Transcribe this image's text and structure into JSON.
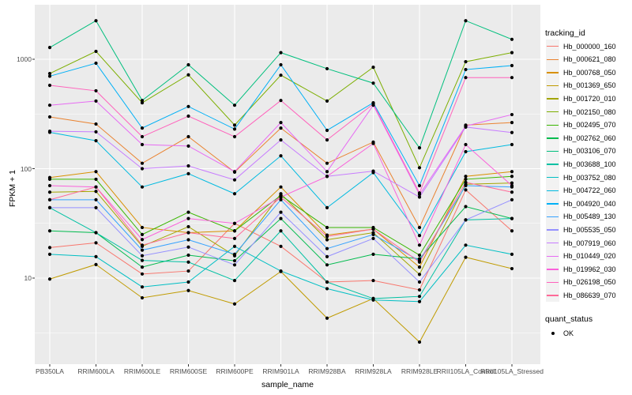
{
  "figure": {
    "y_axis": {
      "title": "FPKM + 1",
      "tick_labels": [
        "10",
        "100",
        "1000"
      ],
      "tick_values": [
        10,
        100,
        1000
      ],
      "minor_tick_values": [
        3.162,
        31.62,
        316.2
      ]
    },
    "x_axis": {
      "title": "sample_name"
    },
    "legend": {
      "title": "tracking_id",
      "quant_title": "quant_status",
      "quant_items": [
        "OK"
      ]
    },
    "colors": {
      "panel_bg": "#EBEBEB",
      "grid": "#FFFFFF",
      "axis_text": "#4D4D4D",
      "key_bg": "#F2F2F2",
      "point": "#000000"
    }
  },
  "chart_data": {
    "type": "line",
    "title": "",
    "xlabel": "sample_name",
    "ylabel": "FPKM + 1",
    "y_scale": "log10",
    "ylim": [
      1.6,
      3100
    ],
    "y_ticks": [
      10,
      100,
      1000
    ],
    "grid": true,
    "legend_position": "right",
    "x_categories": [
      "PB350LA",
      "RRIM600LA",
      "RRIM600LE",
      "RRIM600SE",
      "RRIM600PE",
      "RRIM901LA",
      "RRIM928BA",
      "RRIM928LA",
      "RRIM928LE",
      "RRII105LA_Control",
      "RRII105LA_Stressed"
    ],
    "series": [
      {
        "name": "Hb_000000_160",
        "color": "#F8766D",
        "values": [
          19,
          21,
          10.9,
          11.6,
          31.6,
          19.5,
          9.2,
          9.5,
          7.8,
          64,
          27
        ]
      },
      {
        "name": "Hb_000621_080",
        "color": "#EA8331",
        "values": [
          297,
          256,
          112,
          196,
          93,
          235,
          112,
          175,
          29,
          250,
          264
        ]
      },
      {
        "name": "Hb_000768_050",
        "color": "#D89000",
        "values": [
          83,
          94,
          29,
          26,
          27,
          68,
          24.7,
          28,
          12.6,
          85,
          94
        ]
      },
      {
        "name": "Hb_001369_650",
        "color": "#C09B00",
        "values": [
          9.8,
          13.3,
          6.6,
          7.7,
          5.8,
          11.5,
          4.3,
          6.5,
          2.6,
          15.5,
          12.2
        ]
      },
      {
        "name": "Hb_001720_010",
        "color": "#A3A500",
        "values": [
          61,
          62,
          19.5,
          29.5,
          16,
          59,
          22.4,
          26,
          10.8,
          72,
          74
        ]
      },
      {
        "name": "Hb_002150_080",
        "color": "#7CAE00",
        "values": [
          740,
          1180,
          400,
          720,
          250,
          715,
          415,
          845,
          102,
          950,
          1150
        ]
      },
      {
        "name": "Hb_002495_070",
        "color": "#39B600",
        "values": [
          80,
          80,
          25,
          40,
          27,
          57,
          29,
          29,
          16.2,
          80,
          85
        ]
      },
      {
        "name": "Hb_002762_060",
        "color": "#00BB4E",
        "values": [
          27,
          26,
          12.6,
          16.2,
          14.4,
          35,
          13.2,
          16.5,
          15,
          45,
          35
        ]
      },
      {
        "name": "Hb_003106_070",
        "color": "#00BF7D",
        "values": [
          1280,
          2250,
          420,
          890,
          380,
          1150,
          820,
          605,
          155,
          2250,
          1520
        ]
      },
      {
        "name": "Hb_003688_100",
        "color": "#00C1A3",
        "values": [
          44,
          26,
          14.5,
          14,
          9.5,
          27,
          9.2,
          6.5,
          6.8,
          34,
          35
        ]
      },
      {
        "name": "Hb_003752_080",
        "color": "#00BFC4",
        "values": [
          16.5,
          15.7,
          8.3,
          9.2,
          19.5,
          11.6,
          8,
          6.3,
          6.1,
          20,
          16.5
        ]
      },
      {
        "name": "Hb_004722_060",
        "color": "#00BAE0",
        "values": [
          215,
          180,
          68,
          90,
          59,
          131,
          44,
          92,
          24.5,
          143,
          166
        ]
      },
      {
        "name": "Hb_004920_040",
        "color": "#00B0F6",
        "values": [
          700,
          920,
          235,
          370,
          230,
          890,
          224,
          400,
          70,
          805,
          875
        ]
      },
      {
        "name": "Hb_005489_130",
        "color": "#35A2FF",
        "values": [
          52,
          52,
          18,
          22.4,
          16.5,
          52,
          18.6,
          25,
          14.4,
          70,
          68
        ]
      },
      {
        "name": "Hb_005535_050",
        "color": "#9590FF",
        "values": [
          44,
          44,
          16,
          19.2,
          13.2,
          40,
          15.7,
          23,
          9.2,
          34,
          52
        ]
      },
      {
        "name": "Hb_007919_060",
        "color": "#C77CFF",
        "values": [
          220,
          217,
          100,
          106,
          79,
          183,
          85,
          95,
          55,
          240,
          214
        ]
      },
      {
        "name": "Hb_010449_020",
        "color": "#E76BF3",
        "values": [
          380,
          415,
          166,
          161,
          94,
          264,
          94,
          380,
          58,
          245,
          312
        ]
      },
      {
        "name": "Hb_019962_030",
        "color": "#FA62DB",
        "values": [
          70,
          68,
          22.5,
          35,
          31.6,
          55,
          85,
          170,
          20,
          166,
          70
        ]
      },
      {
        "name": "Hb_026198_050",
        "color": "#FF62BC",
        "values": [
          578,
          515,
          196,
          302,
          196,
          420,
          183,
          390,
          60,
          680,
          680
        ]
      },
      {
        "name": "Hb_086639_070",
        "color": "#FF6A98",
        "values": [
          52,
          68,
          20,
          26,
          23,
          55,
          24,
          28,
          14,
          75,
          61
        ]
      }
    ],
    "quant_status": {
      "title": "quant_status",
      "items": [
        "OK"
      ]
    }
  }
}
